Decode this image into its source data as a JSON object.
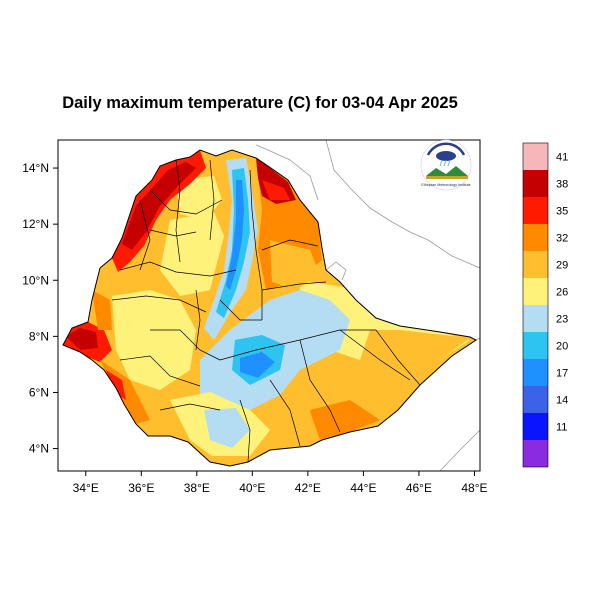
{
  "title": "Daily maximum temperature (C) for 03-04 Apr 2025",
  "map": {
    "lat_range": [
      3.2,
      15.0
    ],
    "lon_range": [
      33.0,
      48.2
    ],
    "x_ticks": [
      "34°E",
      "36°E",
      "38°E",
      "40°E",
      "42°E",
      "44°E",
      "46°E",
      "48°E"
    ],
    "y_ticks": [
      "14°N",
      "12°N",
      "10°N",
      "8°N",
      "6°N",
      "4°N"
    ]
  },
  "colorbar": {
    "colors": [
      "#f7b6b9",
      "#c40000",
      "#ff1a00",
      "#ff8a00",
      "#ffbe2e",
      "#fff27a",
      "#b4dcf2",
      "#2ec4f2",
      "#1e90ff",
      "#3b62e8",
      "#0a14ff",
      "#8a2be2"
    ],
    "labels": [
      "41",
      "38",
      "35",
      "32",
      "29",
      "26",
      "23",
      "20",
      "17",
      "14",
      "11"
    ]
  },
  "logo": {
    "text": "Ethiopian Meteorology Institute",
    "icon": "ethiopian-meteorology-logo"
  },
  "legend_units": "C"
}
